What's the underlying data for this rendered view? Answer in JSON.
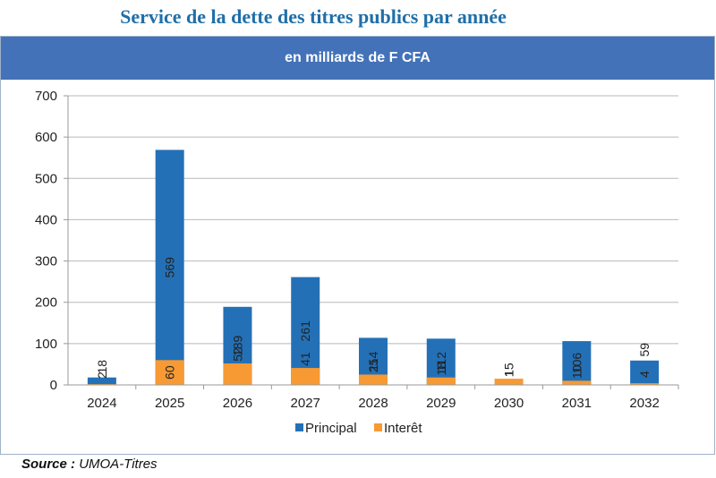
{
  "page": {
    "title": "Service de la dette des titres publics par année",
    "subtitle": "en milliards de F CFA",
    "source_label": "Source :",
    "source_value": "UMOA-Titres"
  },
  "colors": {
    "principal": "#2470b6",
    "interet": "#f79a34",
    "banner": "#4372b8",
    "title": "#1f6fa8"
  },
  "chart_data": {
    "type": "bar",
    "stacked": true,
    "title": "Service de la dette des titres publics par année",
    "subtitle": "en milliards de F CFA",
    "xlabel": "",
    "ylabel": "",
    "categories": [
      "2024",
      "2025",
      "2026",
      "2027",
      "2028",
      "2029",
      "2030",
      "2031",
      "2032"
    ],
    "series": [
      {
        "name": "Principal",
        "values": [
          18,
          569,
          189,
          261,
          114,
          112,
          1,
          106,
          59
        ]
      },
      {
        "name": "Interet",
        "label": "Interêt",
        "values": [
          2,
          60,
          52,
          41,
          25,
          18,
          15,
          10,
          4
        ]
      }
    ],
    "ylim": [
      0,
      700
    ],
    "yticks": [
      0,
      100,
      200,
      300,
      400,
      500,
      600,
      700
    ],
    "grid": true,
    "legend": "bottom"
  }
}
